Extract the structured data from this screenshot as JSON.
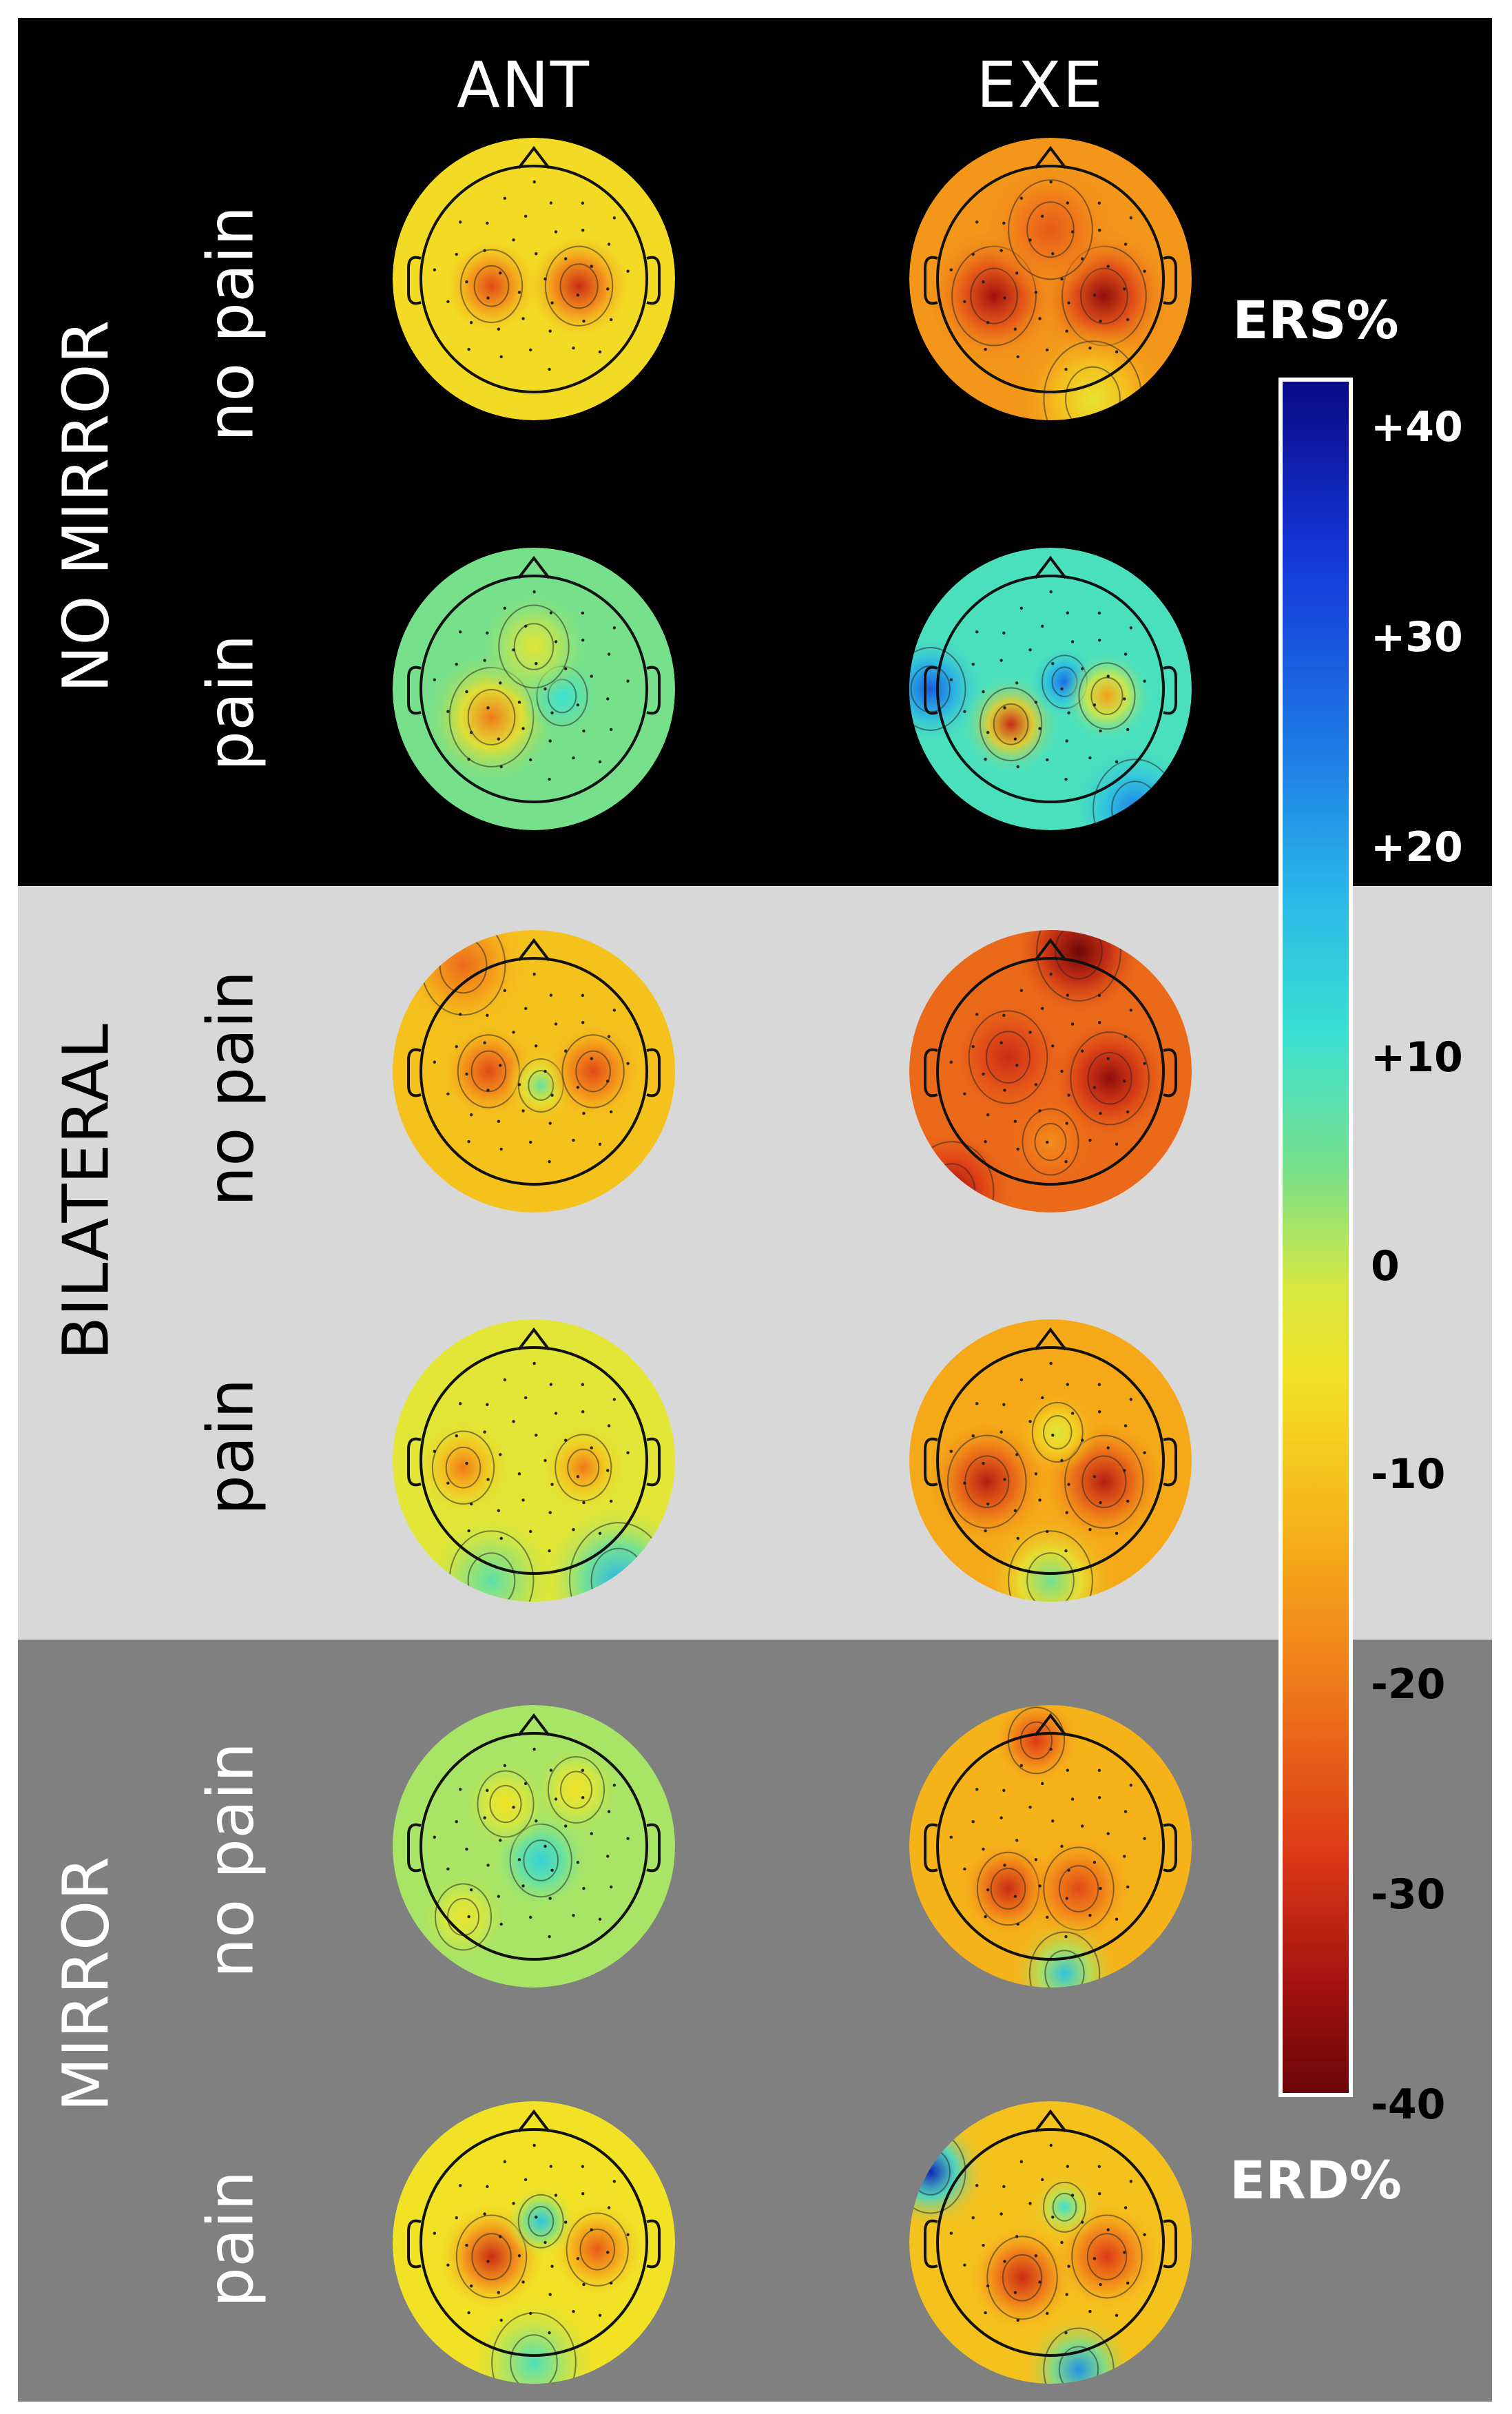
{
  "columns": [
    "ANT",
    "EXE"
  ],
  "conditions": [
    "NO MIRROR",
    "BILATERAL",
    "MIRROR"
  ],
  "rows": [
    "no pain",
    "pain",
    "no pain",
    "pain",
    "no pain",
    "pain"
  ],
  "colorbar": {
    "top_label": "ERS%",
    "bottom_label": "ERD%",
    "ticks": [
      "+40",
      "+30",
      "+20",
      "+10",
      "0",
      "-10",
      "-20",
      "-30",
      "-40"
    ],
    "tick_values": [
      40,
      30,
      20,
      10,
      0,
      -10,
      -20,
      -30,
      -40
    ],
    "range": [
      -40,
      40
    ]
  },
  "colors": {
    "no_mirror_band": "#000000",
    "bilateral_band": "#d8d8d8",
    "mirror_band": "#808080"
  },
  "topomaps": [
    {
      "condition": "NO MIRROR",
      "row": "no pain",
      "col": "ANT",
      "bg": -9,
      "blobs": [
        {
          "dx": -0.3,
          "dy": 0.05,
          "v": -26,
          "r": 0.22
        },
        {
          "dx": 0.32,
          "dy": 0.05,
          "v": -30,
          "r": 0.24
        }
      ]
    },
    {
      "condition": "NO MIRROR",
      "row": "no pain",
      "col": "EXE",
      "bg": -17,
      "blobs": [
        {
          "dx": -0.4,
          "dy": 0.12,
          "v": -34,
          "r": 0.3
        },
        {
          "dx": 0.38,
          "dy": 0.12,
          "v": -36,
          "r": 0.3
        },
        {
          "dx": 0.0,
          "dy": -0.35,
          "v": -24,
          "r": 0.3
        },
        {
          "dx": 0.3,
          "dy": 0.85,
          "v": -6,
          "r": 0.35
        }
      ]
    },
    {
      "condition": "NO MIRROR",
      "row": "pain",
      "col": "ANT",
      "bg": 3,
      "blobs": [
        {
          "dx": -0.3,
          "dy": 0.2,
          "v": -20,
          "r": 0.3
        },
        {
          "dx": 0.2,
          "dy": 0.05,
          "v": 10,
          "r": 0.18
        },
        {
          "dx": 0.0,
          "dy": -0.3,
          "v": -5,
          "r": 0.25
        }
      ]
    },
    {
      "condition": "NO MIRROR",
      "row": "pain",
      "col": "EXE",
      "bg": 8,
      "blobs": [
        {
          "dx": -0.85,
          "dy": 0.0,
          "v": 26,
          "r": 0.25
        },
        {
          "dx": -0.28,
          "dy": 0.25,
          "v": -30,
          "r": 0.22
        },
        {
          "dx": 0.1,
          "dy": -0.05,
          "v": 24,
          "r": 0.16
        },
        {
          "dx": 0.4,
          "dy": 0.05,
          "v": -16,
          "r": 0.2
        },
        {
          "dx": 0.6,
          "dy": 0.85,
          "v": 22,
          "r": 0.3
        }
      ]
    },
    {
      "condition": "BILATERAL",
      "row": "no pain",
      "col": "ANT",
      "bg": -12,
      "blobs": [
        {
          "dx": -0.32,
          "dy": 0.0,
          "v": -26,
          "r": 0.22
        },
        {
          "dx": 0.05,
          "dy": 0.1,
          "v": 5,
          "r": 0.16
        },
        {
          "dx": 0.42,
          "dy": 0.0,
          "v": -26,
          "r": 0.22
        },
        {
          "dx": -0.5,
          "dy": -0.75,
          "v": -22,
          "r": 0.3
        }
      ]
    },
    {
      "condition": "BILATERAL",
      "row": "no pain",
      "col": "EXE",
      "bg": -22,
      "blobs": [
        {
          "dx": 0.42,
          "dy": 0.05,
          "v": -36,
          "r": 0.28
        },
        {
          "dx": 0.2,
          "dy": -0.85,
          "v": -40,
          "r": 0.3
        },
        {
          "dx": -0.3,
          "dy": -0.1,
          "v": -30,
          "r": 0.28
        },
        {
          "dx": -0.7,
          "dy": 0.85,
          "v": -34,
          "r": 0.3
        },
        {
          "dx": 0.0,
          "dy": 0.5,
          "v": -18,
          "r": 0.2
        }
      ]
    },
    {
      "condition": "BILATERAL",
      "row": "pain",
      "col": "ANT",
      "bg": -5,
      "blobs": [
        {
          "dx": -0.5,
          "dy": 0.05,
          "v": -20,
          "r": 0.22
        },
        {
          "dx": 0.35,
          "dy": 0.05,
          "v": -20,
          "r": 0.2
        },
        {
          "dx": 0.6,
          "dy": 0.85,
          "v": 16,
          "r": 0.35
        },
        {
          "dx": -0.3,
          "dy": 0.85,
          "v": 6,
          "r": 0.3
        }
      ]
    },
    {
      "condition": "BILATERAL",
      "row": "pain",
      "col": "EXE",
      "bg": -15,
      "blobs": [
        {
          "dx": -0.45,
          "dy": 0.15,
          "v": -32,
          "r": 0.28
        },
        {
          "dx": 0.38,
          "dy": 0.15,
          "v": -32,
          "r": 0.28
        },
        {
          "dx": 0.05,
          "dy": -0.2,
          "v": -4,
          "r": 0.18
        },
        {
          "dx": 0.0,
          "dy": 0.85,
          "v": 4,
          "r": 0.3
        }
      ]
    },
    {
      "condition": "MIRROR",
      "row": "no pain",
      "col": "ANT",
      "bg": 0,
      "blobs": [
        {
          "dx": 0.05,
          "dy": 0.1,
          "v": 12,
          "r": 0.22
        },
        {
          "dx": -0.2,
          "dy": -0.3,
          "v": -8,
          "r": 0.2
        },
        {
          "dx": 0.3,
          "dy": -0.4,
          "v": -8,
          "r": 0.2
        },
        {
          "dx": -0.5,
          "dy": 0.5,
          "v": -6,
          "r": 0.2
        }
      ]
    },
    {
      "condition": "MIRROR",
      "row": "no pain",
      "col": "EXE",
      "bg": -14,
      "blobs": [
        {
          "dx": -0.3,
          "dy": 0.3,
          "v": -30,
          "r": 0.22
        },
        {
          "dx": 0.2,
          "dy": 0.3,
          "v": -26,
          "r": 0.25
        },
        {
          "dx": -0.1,
          "dy": -0.75,
          "v": -28,
          "r": 0.2
        },
        {
          "dx": 0.1,
          "dy": 0.9,
          "v": 14,
          "r": 0.25
        }
      ]
    },
    {
      "condition": "MIRROR",
      "row": "pain",
      "col": "ANT",
      "bg": -8,
      "blobs": [
        {
          "dx": -0.3,
          "dy": 0.1,
          "v": -30,
          "r": 0.25
        },
        {
          "dx": 0.45,
          "dy": 0.05,
          "v": -24,
          "r": 0.22
        },
        {
          "dx": 0.05,
          "dy": -0.15,
          "v": 14,
          "r": 0.16
        },
        {
          "dx": 0.0,
          "dy": 0.85,
          "v": 8,
          "r": 0.3
        }
      ]
    },
    {
      "condition": "MIRROR",
      "row": "pain",
      "col": "EXE",
      "bg": -12,
      "blobs": [
        {
          "dx": -0.85,
          "dy": -0.5,
          "v": 34,
          "r": 0.25
        },
        {
          "dx": -0.2,
          "dy": 0.25,
          "v": -30,
          "r": 0.25
        },
        {
          "dx": 0.4,
          "dy": 0.1,
          "v": -28,
          "r": 0.25
        },
        {
          "dx": 0.1,
          "dy": -0.25,
          "v": 10,
          "r": 0.15
        },
        {
          "dx": 0.2,
          "dy": 0.9,
          "v": 20,
          "r": 0.25
        }
      ]
    }
  ]
}
